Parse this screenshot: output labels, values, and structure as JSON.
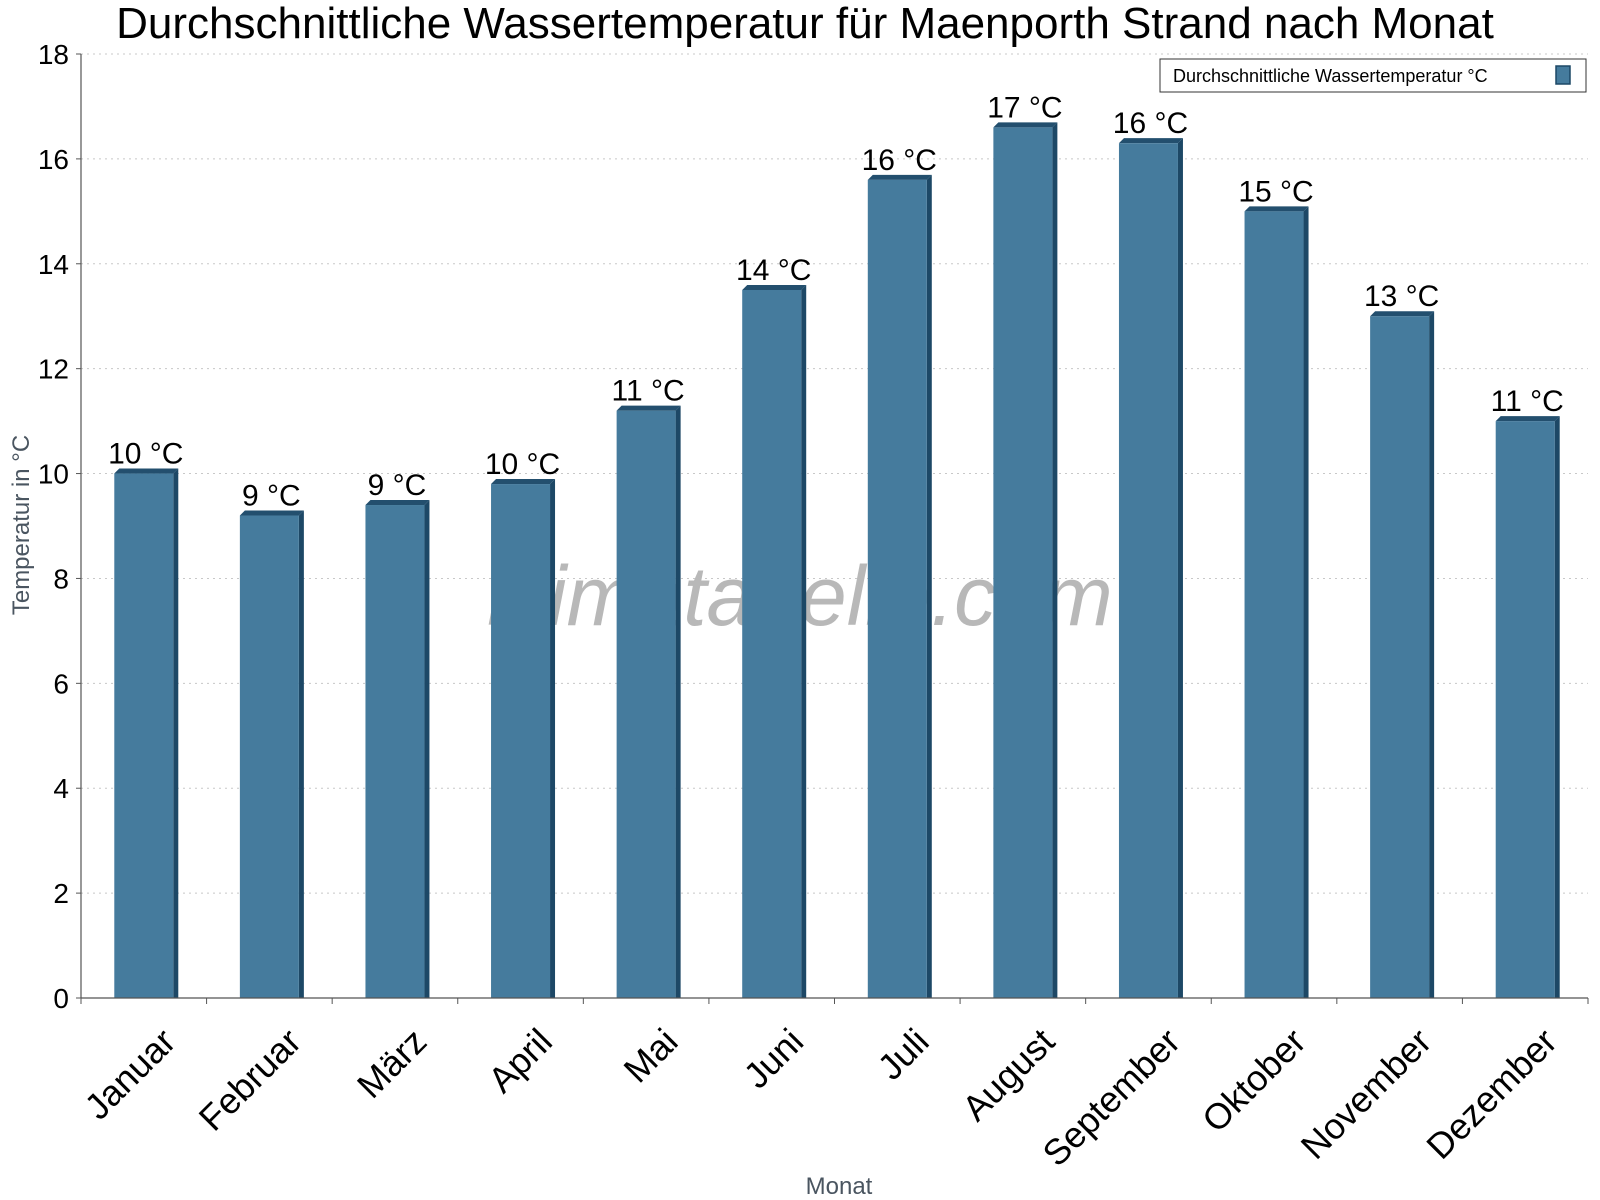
{
  "chart_data": {
    "type": "bar",
    "title": "Durchschnittliche Wassertemperatur für Maenporth Strand nach Monat",
    "xlabel": "Monat",
    "ylabel": "Temperatur in °C",
    "categories": [
      "Januar",
      "Februar",
      "März",
      "April",
      "Mai",
      "Juni",
      "Juli",
      "August",
      "September",
      "Oktober",
      "November",
      "Dezember"
    ],
    "series": [
      {
        "name": "Durchschnittliche Wassertemperatur °C",
        "values": [
          10.0,
          9.2,
          9.4,
          9.8,
          11.2,
          13.5,
          15.6,
          16.6,
          16.3,
          15.0,
          13.0,
          11.0
        ],
        "labels": [
          "10 °C",
          "9 °C",
          "9 °C",
          "10 °C",
          "11 °C",
          "14 °C",
          "16 °C",
          "17 °C",
          "16 °C",
          "15 °C",
          "13 °C",
          "11 °C"
        ]
      }
    ],
    "yticks": [
      0,
      2,
      4,
      6,
      8,
      10,
      12,
      14,
      16,
      18
    ],
    "ylim": [
      0,
      18
    ],
    "grid": true,
    "legend_position": "top-right"
  },
  "watermark": "klimatabelle.com",
  "colors": {
    "bar": "#457b9d",
    "bar_top": "#234f6e",
    "bar_side": "#1d4866",
    "grid": "#c8c8c8",
    "axis": "#555555"
  }
}
